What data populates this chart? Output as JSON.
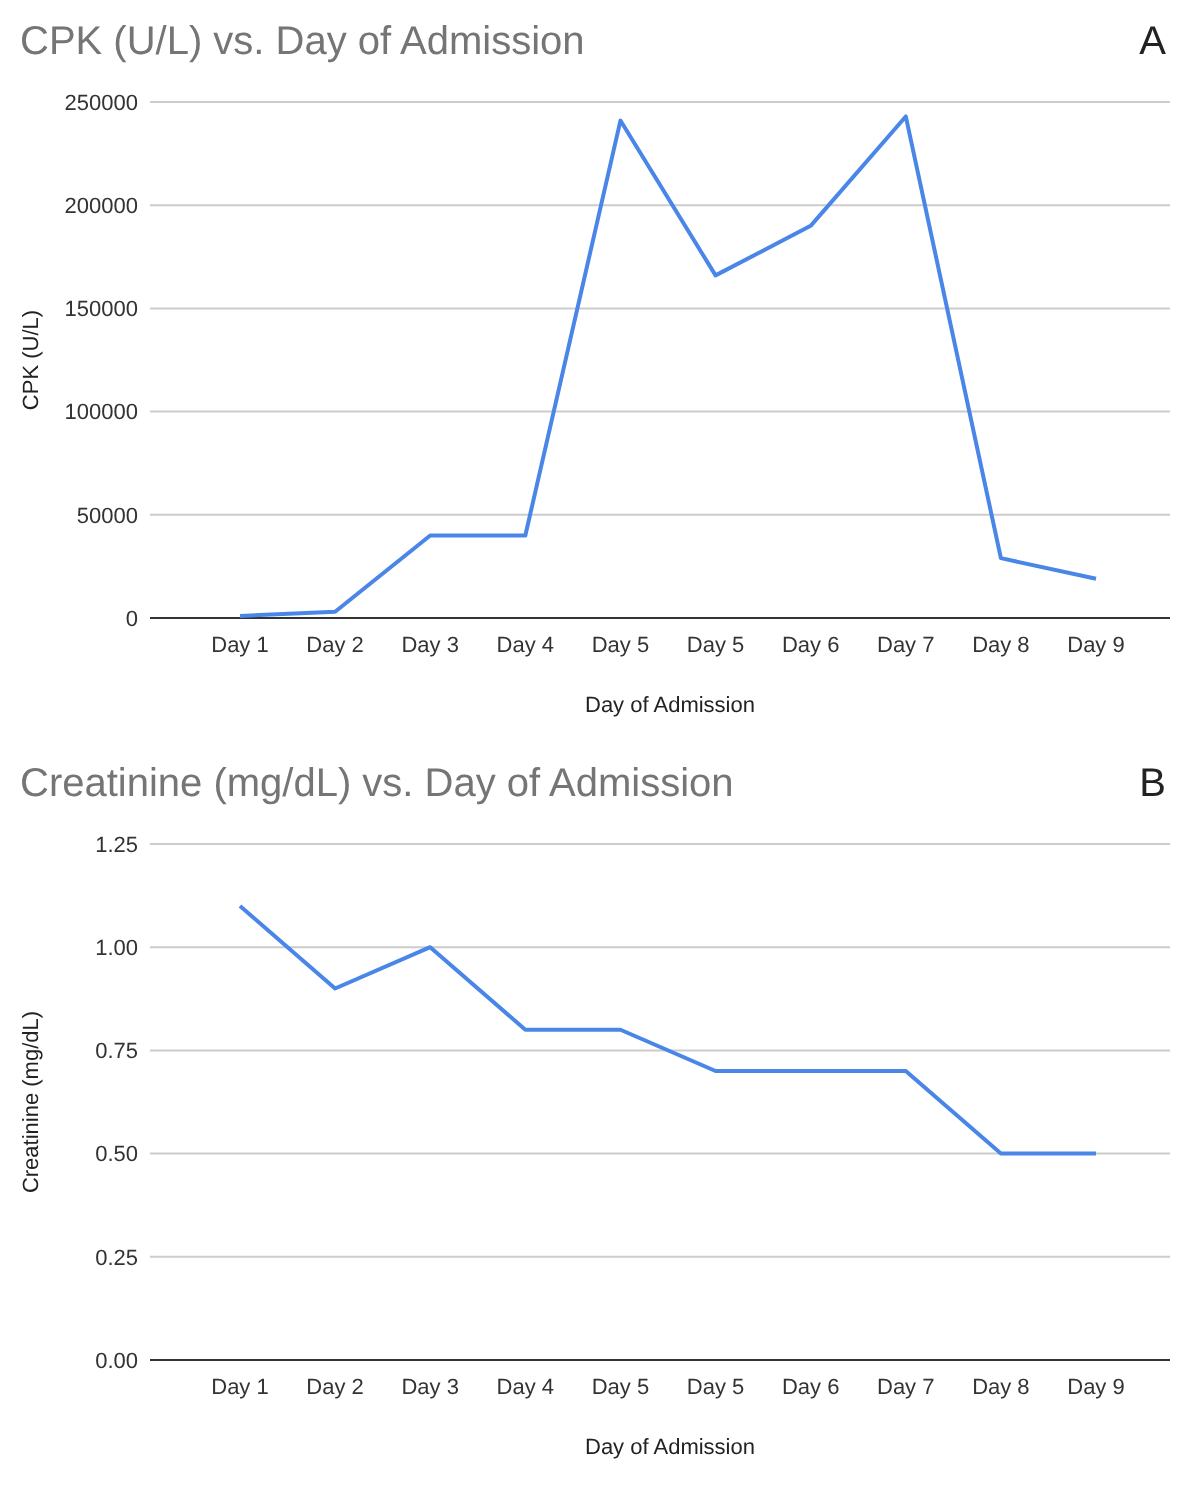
{
  "chart_data": [
    {
      "type": "line",
      "title": "CPK (U/L) vs. Day of Admission",
      "xlabel": "Day of Admission",
      "ylabel": "CPK (U/L)",
      "annotations": [
        "A"
      ],
      "categories": [
        "Day 1",
        "Day 2",
        "Day 3",
        "Day 4",
        "Day 5",
        "Day 5",
        "Day 6",
        "Day 7",
        "Day 8",
        "Day 9"
      ],
      "series": [
        {
          "color": "#4a86e8",
          "values": [
            1000,
            3000,
            40000,
            40000,
            241000,
            166000,
            190000,
            243000,
            29000,
            19000
          ]
        }
      ],
      "ylim": [
        0,
        250000
      ],
      "yticks": [
        0,
        50000,
        100000,
        150000,
        200000,
        250000
      ],
      "grid": "y"
    },
    {
      "type": "line",
      "title": "Creatinine (mg/dL) vs. Day of Admission",
      "xlabel": "Day of Admission",
      "ylabel": "Creatinine (mg/dL)",
      "annotations": [
        "B"
      ],
      "categories": [
        "Day 1",
        "Day 2",
        "Day 3",
        "Day 4",
        "Day 5",
        "Day 5",
        "Day 6",
        "Day 7",
        "Day 8",
        "Day 9"
      ],
      "series": [
        {
          "color": "#4a86e8",
          "values": [
            1.1,
            0.9,
            1.0,
            0.8,
            0.8,
            0.7,
            0.7,
            0.7,
            0.5,
            0.5
          ]
        }
      ],
      "ylim": [
        0,
        1.25
      ],
      "yticks": [
        {
          "value": 0,
          "label": "0.00"
        },
        {
          "value": 0.25,
          "label": "0.25"
        },
        {
          "value": 0.5,
          "label": "0.50"
        },
        {
          "value": 0.75,
          "label": "0.75"
        },
        {
          "value": 1,
          "label": "1.00"
        },
        {
          "value": 1.25,
          "label": "1.25"
        }
      ],
      "grid": "y"
    }
  ]
}
